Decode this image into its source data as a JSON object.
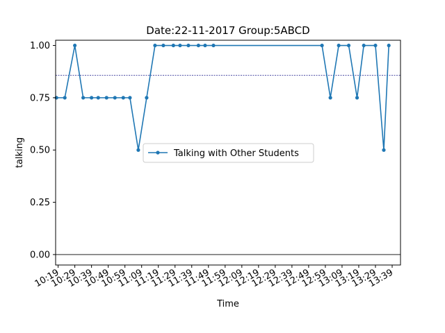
{
  "chart_data": {
    "type": "line",
    "title": "Date:22-11-2017  Group:5ABCD",
    "xlabel": "Time",
    "ylabel": "talking",
    "x_tick_labels": [
      "10:19",
      "10:29",
      "10:39",
      "10:49",
      "10:59",
      "11:09",
      "11:19",
      "11:29",
      "11:39",
      "11:49",
      "11:59",
      "12:09",
      "12:19",
      "12:29",
      "12:39",
      "12:49",
      "12:59",
      "13:09",
      "13:19",
      "13:29",
      "13:39"
    ],
    "y_tick_labels": [
      "0.00",
      "0.25",
      "0.50",
      "0.75",
      "1.00"
    ],
    "y_ticks": [
      0,
      0.25,
      0.5,
      0.75,
      1.0
    ],
    "xlim_minutes": [
      617.5,
      824
    ],
    "ylim": [
      -0.05,
      1.025
    ],
    "series": [
      {
        "name": "Talking with Other Students",
        "color": "#1f77b4",
        "x": [
          "10:18",
          "10:23",
          "10:29",
          "10:34",
          "10:39",
          "10:43",
          "10:48",
          "10:53",
          "10:58",
          "11:02",
          "11:07",
          "11:12",
          "11:17",
          "11:22",
          "11:28",
          "11:32",
          "11:37",
          "11:43",
          "11:47",
          "11:52",
          "12:57",
          "13:02",
          "13:07",
          "13:13",
          "13:18",
          "13:22",
          "13:29",
          "13:34",
          "13:37"
        ],
        "values": [
          0.75,
          0.75,
          1.0,
          0.75,
          0.75,
          0.75,
          0.75,
          0.75,
          0.75,
          0.75,
          0.5,
          0.75,
          1.0,
          1.0,
          1.0,
          1.0,
          1.0,
          1.0,
          1.0,
          1.0,
          1.0,
          0.75,
          1.0,
          1.0,
          0.75,
          1.0,
          1.0,
          0.5,
          1.0
        ]
      }
    ],
    "reference_lines": [
      {
        "y": 0.857,
        "style": "dashed",
        "color": "#1a1a8c"
      },
      {
        "y": 0.0,
        "style": "solid",
        "color": "#000000"
      }
    ],
    "legend_position": "center"
  }
}
